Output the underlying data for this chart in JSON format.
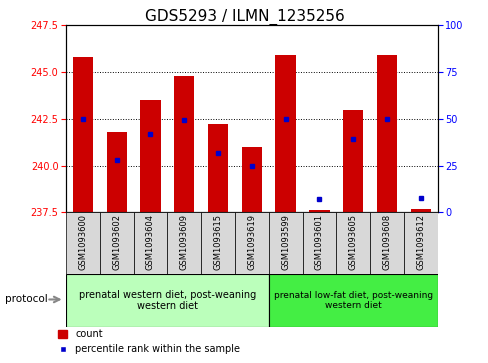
{
  "title": "GDS5293 / ILMN_1235256",
  "samples": [
    "GSM1093600",
    "GSM1093602",
    "GSM1093604",
    "GSM1093609",
    "GSM1093615",
    "GSM1093619",
    "GSM1093599",
    "GSM1093601",
    "GSM1093605",
    "GSM1093608",
    "GSM1093612"
  ],
  "bar_bottoms": [
    237.5,
    237.5,
    237.5,
    237.5,
    237.5,
    237.5,
    237.5,
    237.5,
    237.5,
    237.5,
    237.5
  ],
  "bar_tops": [
    245.8,
    241.8,
    243.5,
    244.8,
    242.2,
    241.0,
    245.9,
    237.6,
    243.0,
    245.9,
    237.7
  ],
  "blue_y": [
    242.5,
    240.3,
    241.7,
    242.45,
    240.7,
    239.98,
    242.5,
    238.2,
    241.4,
    242.5,
    238.25
  ],
  "ylim": [
    237.5,
    247.5
  ],
  "yticks": [
    237.5,
    240.0,
    242.5,
    245.0,
    247.5
  ],
  "y2ticks": [
    0,
    25,
    50,
    75,
    100
  ],
  "bar_color": "#cc0000",
  "blue_color": "#0000cc",
  "group1_label": "prenatal western diet, post-weaning\nwestern diet",
  "group2_label": "prenatal low-fat diet, post-weaning\nwestern diet",
  "group1_count": 6,
  "group2_count": 5,
  "legend_count_label": "count",
  "legend_pct_label": "percentile rank within the sample",
  "protocol_label": "protocol",
  "bg_color": "#d8d8d8",
  "group1_color": "#bbffbb",
  "group2_color": "#44ee44",
  "title_fontsize": 11,
  "tick_fontsize": 7,
  "bar_width": 0.6
}
